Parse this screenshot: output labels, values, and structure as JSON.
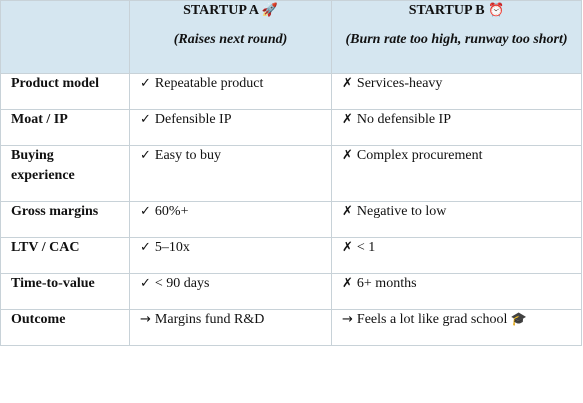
{
  "table": {
    "columns": [
      {
        "title": "STARTUP A",
        "icon": "rocket-icon",
        "icon_glyph": "🚀",
        "subtitle": "(Raises next round)"
      },
      {
        "title": "STARTUP B",
        "icon": "alarm-clock-icon",
        "icon_glyph": "⏰",
        "subtitle": "(Burn rate too high, runway too short)"
      }
    ],
    "rows": [
      {
        "label": "Product model",
        "a_mark": "✓",
        "a": "Repeatable product",
        "b_mark": "✗",
        "b": "Services-heavy"
      },
      {
        "label": "Moat / IP",
        "a_mark": "✓",
        "a": "Defensible IP",
        "b_mark": "✗",
        "b": "No defensible IP"
      },
      {
        "label": "Buying experience",
        "a_mark": "✓",
        "a": "Easy to buy",
        "b_mark": "✗",
        "b": "Complex procurement"
      },
      {
        "label": "Gross margins",
        "a_mark": "✓",
        "a": "60%+",
        "b_mark": "✗",
        "b": "Negative to low"
      },
      {
        "label": "LTV / CAC",
        "a_mark": "✓",
        "a": "5–10x",
        "b_mark": "✗",
        "b": "< 1"
      },
      {
        "label": "Time-to-value",
        "a_mark": "✓",
        "a": "< 90 days",
        "b_mark": "✗",
        "b": "6+ months"
      },
      {
        "label": "Outcome",
        "a_mark": "→",
        "a": "Margins fund R&D",
        "b_mark": "→",
        "b": "Feels a lot like grad school",
        "b_icon": "graduation-cap-icon",
        "b_icon_glyph": "🎓"
      }
    ]
  },
  "colors": {
    "header_bg": "#d5e6f0",
    "border": "#c8d2d8",
    "text": "#111111"
  }
}
